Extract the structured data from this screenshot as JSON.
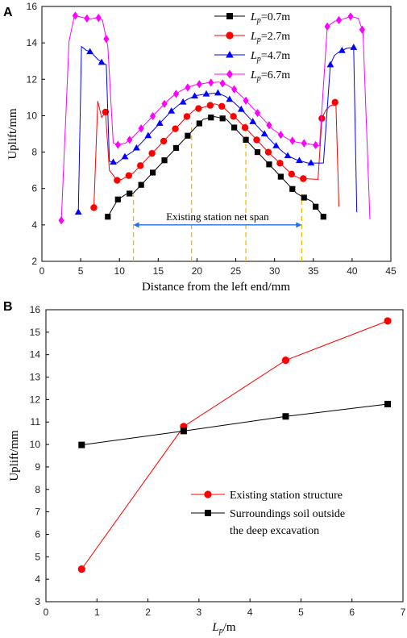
{
  "chart_data": [
    {
      "panel": "A",
      "type": "line",
      "xlabel": "Distance from the left end/mm",
      "ylabel": "Uplift/mm",
      "xlim": [
        0,
        45
      ],
      "ylim": [
        2,
        16
      ],
      "xticks": [
        0,
        5,
        10,
        15,
        20,
        25,
        30,
        35,
        40,
        45
      ],
      "yticks": [
        2,
        4,
        6,
        8,
        10,
        12,
        14,
        16
      ],
      "legend_position": "top-center",
      "annotation": "Existing station net span",
      "annotation_range": [
        11.8,
        33.5
      ],
      "annotation_y": 4.0,
      "guide_lines": [
        {
          "x": 11.8,
          "y": 5.7
        },
        {
          "x": 19.3,
          "y": 9.6
        },
        {
          "x": 26.3,
          "y": 9.6
        },
        {
          "x": 33.5,
          "y": 5.7
        }
      ],
      "series": [
        {
          "name": "Lp=0.7m",
          "color": "#000000",
          "marker": "square",
          "points": [
            [
              8.5,
              4.45
            ],
            [
              9.1,
              4.9
            ],
            [
              9.8,
              5.4
            ],
            [
              10.9,
              5.7
            ],
            [
              11.8,
              5.75
            ],
            [
              12.8,
              6.2
            ],
            [
              13.8,
              6.65
            ],
            [
              14.8,
              7.1
            ],
            [
              15.8,
              7.55
            ],
            [
              16.8,
              8.0
            ],
            [
              17.8,
              8.45
            ],
            [
              18.8,
              8.9
            ],
            [
              19.8,
              9.35
            ],
            [
              20.8,
              9.8
            ],
            [
              22.3,
              9.95
            ],
            [
              23.8,
              9.8
            ],
            [
              24.8,
              9.35
            ],
            [
              25.8,
              8.9
            ],
            [
              26.8,
              8.45
            ],
            [
              27.8,
              8.0
            ],
            [
              28.8,
              7.55
            ],
            [
              29.8,
              7.1
            ],
            [
              30.8,
              6.65
            ],
            [
              31.8,
              6.2
            ],
            [
              32.8,
              5.75
            ],
            [
              33.8,
              5.5
            ],
            [
              34.8,
              5.3
            ],
            [
              35.3,
              5.0
            ],
            [
              36.3,
              4.45
            ]
          ],
          "marker_x": [
            8.5,
            9.8,
            11.3,
            12.8,
            14.3,
            15.8,
            17.3,
            18.8,
            20.3,
            21.8,
            23.3,
            24.8,
            26.3,
            27.8,
            29.3,
            30.8,
            32.3,
            33.8,
            35.3,
            36.3
          ]
        },
        {
          "name": "Lp=2.7m",
          "color": "#ff0000",
          "marker": "circle",
          "points": [
            [
              6.7,
              4.95
            ],
            [
              7.2,
              10.8
            ],
            [
              7.7,
              9.9
            ],
            [
              8.2,
              10.2
            ],
            [
              8.7,
              7.0
            ],
            [
              9.7,
              6.45
            ],
            [
              10.3,
              6.5
            ],
            [
              11.8,
              6.85
            ],
            [
              12.8,
              7.3
            ],
            [
              13.8,
              7.75
            ],
            [
              14.8,
              8.2
            ],
            [
              15.8,
              8.65
            ],
            [
              16.8,
              9.1
            ],
            [
              17.8,
              9.55
            ],
            [
              18.8,
              10.0
            ],
            [
              19.8,
              10.35
            ],
            [
              21.2,
              10.5
            ],
            [
              22.3,
              10.65
            ],
            [
              23.3,
              10.5
            ],
            [
              24.3,
              10.1
            ],
            [
              25.3,
              9.75
            ],
            [
              26.3,
              9.3
            ],
            [
              27.3,
              8.85
            ],
            [
              28.3,
              8.4
            ],
            [
              29.3,
              7.95
            ],
            [
              30.3,
              7.55
            ],
            [
              31.3,
              7.15
            ],
            [
              32.3,
              6.75
            ],
            [
              33.3,
              6.55
            ],
            [
              35.6,
              6.5
            ],
            [
              36.1,
              9.85
            ],
            [
              36.6,
              10.3
            ],
            [
              37.2,
              10.55
            ],
            [
              37.6,
              10.6
            ],
            [
              37.9,
              10.8
            ],
            [
              38.3,
              5.0
            ]
          ],
          "marker_x": [
            6.7,
            8.2,
            9.7,
            11.2,
            12.7,
            14.2,
            15.7,
            17.2,
            18.7,
            20.2,
            21.7,
            23.2,
            24.7,
            26.2,
            27.7,
            29.2,
            30.7,
            32.2,
            33.7,
            36.1,
            37.8
          ]
        },
        {
          "name": "Lp=4.7m",
          "color": "#0000ff",
          "marker": "triangle",
          "points": [
            [
              4.7,
              4.7
            ],
            [
              5.1,
              13.8
            ],
            [
              5.7,
              13.6
            ],
            [
              6.3,
              13.5
            ],
            [
              7.2,
              13.1
            ],
            [
              7.8,
              12.9
            ],
            [
              8.3,
              12.8
            ],
            [
              8.7,
              7.5
            ],
            [
              9.7,
              7.4
            ],
            [
              10.7,
              7.75
            ],
            [
              11.8,
              8.05
            ],
            [
              12.8,
              8.5
            ],
            [
              13.8,
              8.95
            ],
            [
              14.8,
              9.4
            ],
            [
              15.8,
              9.85
            ],
            [
              16.8,
              10.3
            ],
            [
              17.8,
              10.65
            ],
            [
              18.8,
              10.9
            ],
            [
              19.8,
              11.1
            ],
            [
              21.3,
              11.2
            ],
            [
              22.7,
              11.25
            ],
            [
              23.7,
              11.05
            ],
            [
              24.7,
              10.75
            ],
            [
              25.7,
              10.35
            ],
            [
              26.7,
              9.9
            ],
            [
              27.7,
              9.45
            ],
            [
              28.7,
              9.0
            ],
            [
              29.7,
              8.55
            ],
            [
              30.7,
              8.15
            ],
            [
              31.7,
              7.8
            ],
            [
              32.7,
              7.6
            ],
            [
              34.3,
              7.4
            ],
            [
              36.3,
              7.4
            ],
            [
              37.2,
              12.8
            ],
            [
              37.7,
              13.3
            ],
            [
              38.3,
              13.5
            ],
            [
              39.3,
              13.7
            ],
            [
              40.2,
              13.75
            ],
            [
              40.6,
              4.7
            ]
          ],
          "marker_x": [
            4.7,
            6.2,
            7.7,
            9.2,
            10.7,
            12.2,
            13.7,
            15.2,
            16.7,
            18.2,
            19.7,
            21.2,
            22.7,
            24.2,
            25.7,
            27.2,
            28.7,
            30.2,
            31.7,
            33.2,
            34.7,
            37.2,
            38.7,
            40.2
          ]
        },
        {
          "name": "Lp=6.7m",
          "color": "#ff00ff",
          "marker": "diamond",
          "points": [
            [
              2.5,
              4.25
            ],
            [
              3.5,
              14.1
            ],
            [
              4.2,
              15.5
            ],
            [
              5.2,
              15.4
            ],
            [
              6.2,
              15.3
            ],
            [
              7.2,
              15.4
            ],
            [
              7.8,
              15.25
            ],
            [
              8.5,
              13.8
            ],
            [
              9.2,
              8.5
            ],
            [
              9.8,
              8.4
            ],
            [
              10.8,
              8.5
            ],
            [
              11.8,
              8.85
            ],
            [
              12.8,
              9.3
            ],
            [
              13.8,
              9.75
            ],
            [
              14.8,
              10.2
            ],
            [
              15.8,
              10.65
            ],
            [
              16.8,
              11.05
            ],
            [
              17.8,
              11.35
            ],
            [
              18.8,
              11.55
            ],
            [
              19.8,
              11.7
            ],
            [
              21.3,
              11.8
            ],
            [
              22.8,
              11.85
            ],
            [
              23.8,
              11.7
            ],
            [
              24.8,
              11.45
            ],
            [
              25.8,
              11.05
            ],
            [
              26.8,
              10.6
            ],
            [
              27.8,
              10.15
            ],
            [
              28.8,
              9.7
            ],
            [
              29.8,
              9.25
            ],
            [
              30.8,
              8.95
            ],
            [
              31.8,
              8.7
            ],
            [
              32.8,
              8.55
            ],
            [
              34.3,
              8.45
            ],
            [
              35.8,
              8.35
            ],
            [
              36.8,
              14.9
            ],
            [
              37.8,
              15.2
            ],
            [
              38.8,
              15.3
            ],
            [
              39.8,
              15.45
            ],
            [
              40.8,
              15.35
            ],
            [
              41.4,
              14.6
            ],
            [
              42.3,
              4.3
            ]
          ],
          "marker_x": [
            2.5,
            4.3,
            5.8,
            7.3,
            8.3,
            9.8,
            11.3,
            12.8,
            14.3,
            15.8,
            17.3,
            18.8,
            20.3,
            21.8,
            23.3,
            24.8,
            26.3,
            27.8,
            29.3,
            30.8,
            32.3,
            33.8,
            35.3,
            36.8,
            38.3,
            39.8,
            41.3
          ]
        }
      ]
    },
    {
      "panel": "B",
      "type": "line",
      "xlabel": "Lp/m",
      "ylabel": "Uplift/mm",
      "xlim": [
        0,
        7
      ],
      "ylim": [
        3,
        16
      ],
      "xticks": [
        0,
        1,
        2,
        3,
        4,
        5,
        6,
        7
      ],
      "yticks": [
        3,
        4,
        5,
        6,
        7,
        8,
        9,
        10,
        11,
        12,
        13,
        14,
        15,
        16
      ],
      "legend_position": "center-right",
      "x": [
        0.7,
        2.7,
        4.7,
        6.7
      ],
      "series": [
        {
          "name": "Existing station structure",
          "color": "#ff0000",
          "marker": "circle",
          "values": [
            4.45,
            10.8,
            13.75,
            15.5
          ]
        },
        {
          "name": "Surroundings soil outside the deep excavation",
          "name_lines": [
            "Surroundings soil outside",
            "the deep excavation"
          ],
          "color": "#000000",
          "marker": "square",
          "values": [
            9.98,
            10.6,
            11.25,
            11.8
          ]
        }
      ]
    }
  ]
}
